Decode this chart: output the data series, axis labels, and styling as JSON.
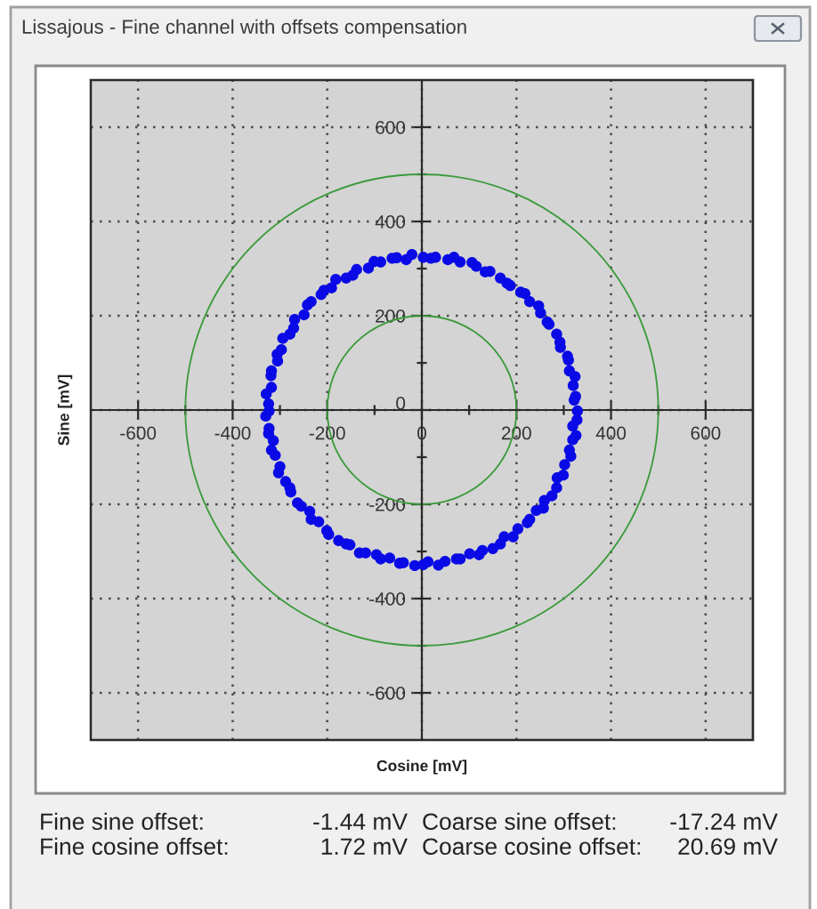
{
  "chart_data": {
    "type": "scatter",
    "title": "Lissajous - Fine channel with offsets compensation",
    "xlabel": "Cosine [mV]",
    "ylabel": "Sine [mV]",
    "xlim": [
      -700,
      700
    ],
    "ylim": [
      -700,
      700
    ],
    "xticks": [
      -600,
      -400,
      -200,
      0,
      200,
      400,
      600
    ],
    "yticks": [
      -600,
      -400,
      -200,
      0,
      200,
      400,
      600
    ],
    "grid": true,
    "marker": "circle",
    "series": [
      {
        "color": "#0a0ae6",
        "x": [
          329,
          322,
          325,
          320,
          324,
          312,
          310,
          308,
          293,
          292,
          285,
          269,
          265,
          251,
          247,
          228,
          218,
          209,
          187,
          180,
          166,
          144,
          134,
          115,
          106,
          81,
          68,
          55,
          29,
          19,
          3,
          -21,
          -33,
          -53,
          -63,
          -87,
          -101,
          -113,
          -138,
          -146,
          -160,
          -182,
          -191,
          -207,
          -213,
          -234,
          -242,
          -249,
          -269,
          -271,
          -279,
          -294,
          -297,
          -306,
          -305,
          -318,
          -319,
          -318,
          -329,
          -324,
          -323,
          -330,
          -323,
          -324,
          -314,
          -318,
          -310,
          -300,
          -303,
          -288,
          -279,
          -277,
          -263,
          -255,
          -237,
          -234,
          -218,
          -201,
          -197,
          -176,
          -160,
          -152,
          -132,
          -119,
          -96,
          -87,
          -68,
          -47,
          -39,
          -15,
          3,
          13,
          35,
          49,
          73,
          81,
          101,
          121,
          128,
          150,
          166,
          174,
          193,
          203,
          223,
          228,
          242,
          257,
          259,
          275,
          285,
          286,
          299,
          302,
          315,
          312,
          319,
          326,
          319,
          328
        ],
        "values": [
          -2,
          21,
          29,
          52,
          71,
          83,
          106,
          114,
          133,
          144,
          161,
          182,
          187,
          206,
          221,
          230,
          247,
          250,
          264,
          269,
          280,
          294,
          293,
          305,
          313,
          314,
          324,
          319,
          324,
          322,
          324,
          330,
          319,
          323,
          322,
          314,
          315,
          301,
          298,
          286,
          280,
          277,
          259,
          254,
          245,
          230,
          223,
          202,
          192,
          174,
          161,
          152,
          128,
          118,
          104,
          83,
          73,
          48,
          34,
          13,
          -2,
          -13,
          -39,
          -50,
          -65,
          -85,
          -96,
          -120,
          -133,
          -152,
          -165,
          -174,
          -197,
          -204,
          -215,
          -232,
          -237,
          -256,
          -264,
          -277,
          -284,
          -286,
          -303,
          -303,
          -307,
          -316,
          -314,
          -325,
          -324,
          -330,
          -328,
          -322,
          -329,
          -321,
          -316,
          -316,
          -305,
          -307,
          -298,
          -294,
          -284,
          -269,
          -269,
          -252,
          -239,
          -232,
          -213,
          -208,
          -192,
          -182,
          -165,
          -144,
          -138,
          -116,
          -98,
          -85,
          -63,
          -54,
          -34,
          -21
        ]
      }
    ],
    "annotations": [
      "Fine sine offset:",
      "-1.44 mV",
      "Coarse sine offset:",
      "-17.24 mV",
      "Fine cosine offset:",
      "1.72 mV",
      "Coarse cosine offset:",
      "20.69 mV"
    ]
  }
}
